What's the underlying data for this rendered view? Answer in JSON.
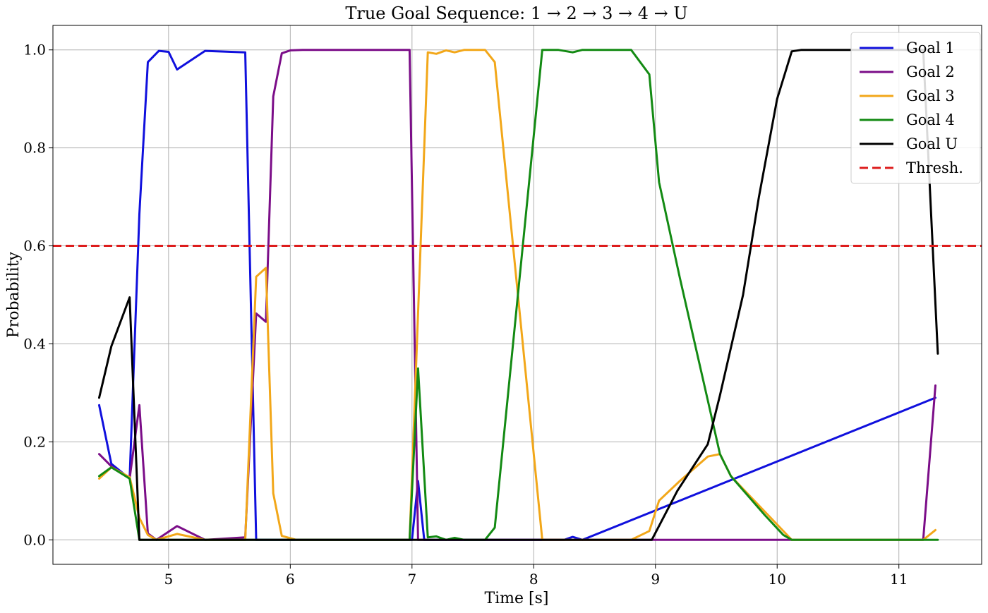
{
  "chart_data": {
    "type": "line",
    "title": "True Goal Sequence: 1 → 2 → 3 → 4 → U",
    "xlabel": "Time [s]",
    "ylabel": "Probability",
    "xlim": [
      4.05,
      11.68
    ],
    "ylim": [
      -0.05,
      1.05
    ],
    "xticks": [
      5,
      6,
      7,
      8,
      9,
      10,
      11
    ],
    "yticks": [
      0.0,
      0.2,
      0.4,
      0.6,
      0.8,
      1.0
    ],
    "xtick_labels": [
      "5",
      "6",
      "7",
      "8",
      "9",
      "10",
      "11"
    ],
    "ytick_labels": [
      "0.0",
      "0.2",
      "0.4",
      "0.6",
      "0.8",
      "1.0"
    ],
    "grid": true,
    "legend_position": "top-right",
    "threshold": {
      "name": "Thresh.",
      "y": 0.6,
      "color": "#dd1c1c",
      "style": "dashed"
    },
    "series": [
      {
        "name": "Goal 1",
        "color": "#1010dd",
        "x": [
          4.43,
          4.53,
          4.68,
          4.76,
          4.83,
          4.92,
          5.0,
          5.07,
          5.3,
          5.63,
          5.72,
          5.8,
          7.0,
          7.05,
          7.1,
          8.0,
          8.25,
          8.32,
          8.4,
          11.3
        ],
        "y": [
          0.275,
          0.155,
          0.125,
          0.665,
          0.975,
          0.998,
          0.996,
          0.96,
          0.998,
          0.995,
          0.0,
          0.0,
          0.0,
          0.12,
          0.0,
          0.0,
          0.0,
          0.006,
          0.0,
          0.29
        ]
      },
      {
        "name": "Goal 2",
        "color": "#7b0d88",
        "x": [
          4.43,
          4.53,
          4.68,
          4.76,
          4.83,
          4.9,
          5.07,
          5.3,
          5.63,
          5.72,
          5.8,
          5.86,
          5.93,
          6.0,
          6.1,
          6.98,
          7.05,
          7.12,
          11.2,
          11.3
        ],
        "y": [
          0.175,
          0.15,
          0.125,
          0.275,
          0.013,
          0.0,
          0.028,
          0.0,
          0.005,
          0.462,
          0.445,
          0.905,
          0.993,
          0.999,
          1.0,
          1.0,
          0.0,
          0.0,
          0.0,
          0.315
        ]
      },
      {
        "name": "Goal 3",
        "color": "#f2a719",
        "x": [
          4.43,
          4.53,
          4.68,
          4.76,
          4.83,
          4.9,
          5.07,
          5.3,
          5.63,
          5.72,
          5.8,
          5.86,
          5.93,
          6.05,
          6.98,
          7.13,
          7.2,
          7.28,
          7.35,
          7.43,
          7.6,
          7.68,
          8.07,
          8.15,
          8.8,
          8.95,
          9.03,
          9.2,
          9.43,
          9.53,
          9.62,
          10.12,
          11.2,
          11.3
        ],
        "y": [
          0.125,
          0.148,
          0.128,
          0.045,
          0.01,
          0.0,
          0.012,
          0.0,
          0.0,
          0.537,
          0.555,
          0.095,
          0.008,
          0.0,
          0.0,
          0.995,
          0.992,
          0.999,
          0.995,
          1.0,
          1.0,
          0.975,
          0.0,
          0.0,
          0.0,
          0.018,
          0.08,
          0.12,
          0.17,
          0.175,
          0.13,
          0.0,
          0.0,
          0.02
        ]
      },
      {
        "name": "Goal 4",
        "color": "#138a13",
        "x": [
          4.43,
          4.53,
          4.68,
          4.76,
          6.98,
          7.05,
          7.13,
          7.2,
          7.28,
          7.35,
          7.43,
          7.6,
          7.68,
          8.07,
          8.2,
          8.32,
          8.4,
          8.8,
          8.95,
          9.03,
          9.2,
          9.43,
          9.53,
          9.62,
          9.9,
          10.05,
          10.12,
          11.2,
          11.32
        ],
        "y": [
          0.13,
          0.148,
          0.125,
          0.0,
          0.0,
          0.35,
          0.005,
          0.007,
          0.0,
          0.004,
          0.0,
          0.0,
          0.025,
          1.0,
          1.0,
          0.995,
          1.0,
          1.0,
          0.95,
          0.73,
          0.535,
          0.285,
          0.175,
          0.13,
          0.05,
          0.01,
          0.0,
          0.0,
          0.0
        ]
      },
      {
        "name": "Goal U",
        "color": "#000000",
        "x": [
          4.43,
          4.53,
          4.68,
          4.76,
          8.97,
          9.18,
          9.43,
          9.53,
          9.72,
          9.85,
          10.0,
          10.12,
          10.2,
          11.2,
          11.32
        ],
        "y": [
          0.29,
          0.395,
          0.495,
          0.0,
          0.0,
          0.1,
          0.195,
          0.295,
          0.5,
          0.7,
          0.9,
          0.997,
          1.0,
          1.0,
          0.38
        ]
      }
    ]
  }
}
